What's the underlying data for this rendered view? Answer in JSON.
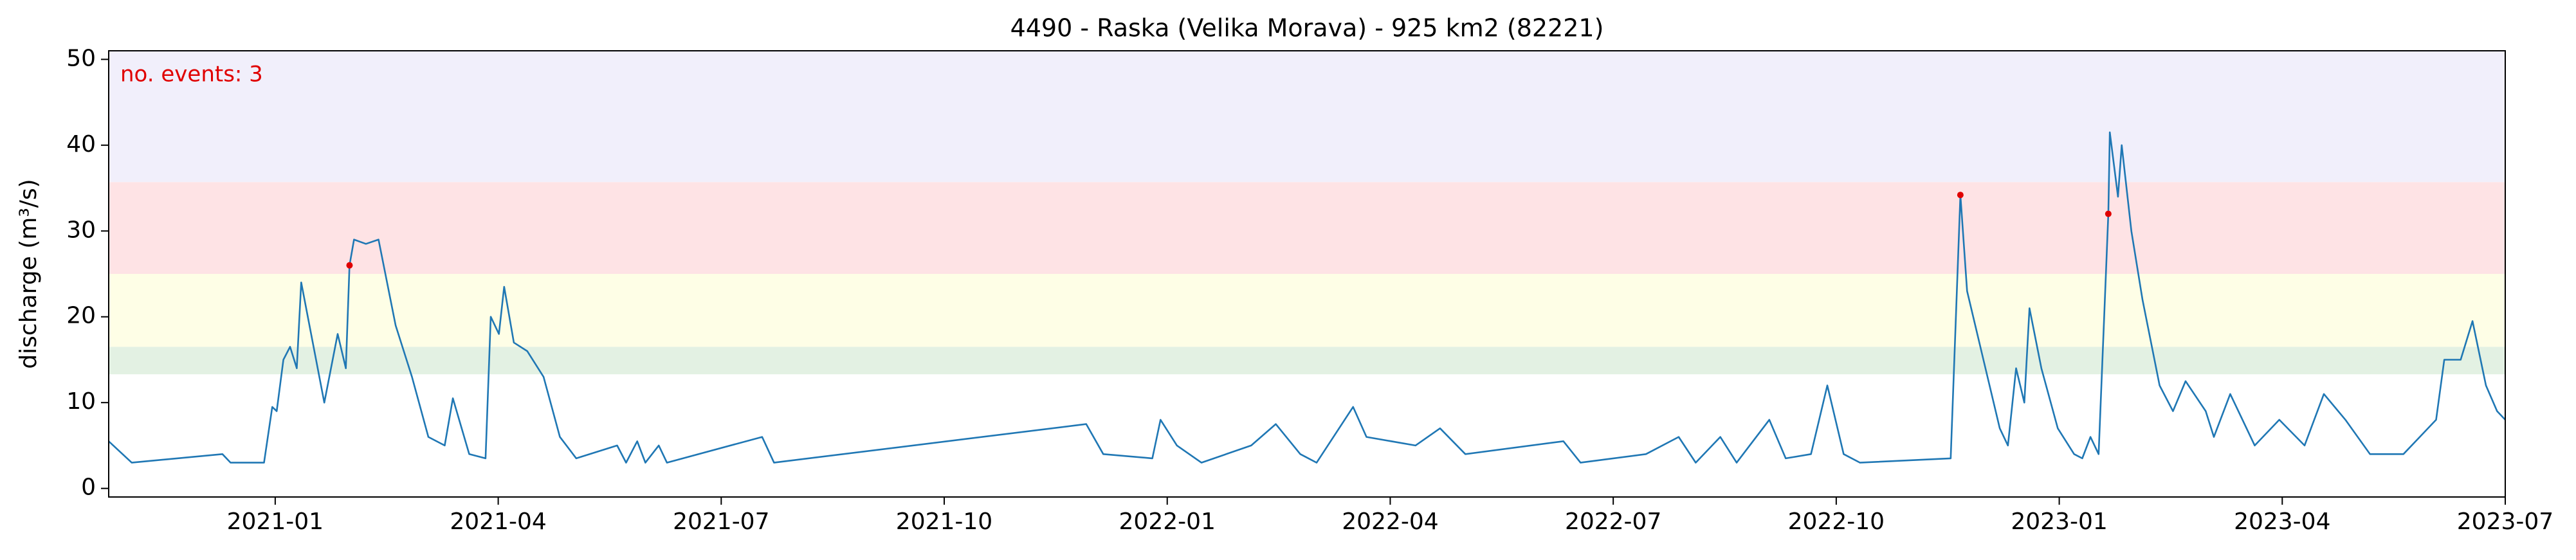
{
  "chart_data": {
    "type": "line",
    "title": "4490 - Raska (Velika Morava) - 925 km2 (82221)",
    "ylabel": "discharge (m³/s)",
    "annotation": "no. events: 3",
    "annotation_color": "#e00000",
    "color": "#1f77b4",
    "xlim": [
      -2.24,
      30
    ],
    "ylim": [
      -1,
      51
    ],
    "yticks": [
      0,
      10,
      20,
      30,
      40,
      50
    ],
    "xticks": [
      {
        "value": 0,
        "label": "2021-01"
      },
      {
        "value": 3,
        "label": "2021-04"
      },
      {
        "value": 6,
        "label": "2021-07"
      },
      {
        "value": 9,
        "label": "2021-10"
      },
      {
        "value": 12,
        "label": "2022-01"
      },
      {
        "value": 15,
        "label": "2022-04"
      },
      {
        "value": 18,
        "label": "2022-07"
      },
      {
        "value": 21,
        "label": "2022-10"
      },
      {
        "value": 24,
        "label": "2023-01"
      },
      {
        "value": 27,
        "label": "2023-04"
      },
      {
        "value": 30,
        "label": "2023-07"
      }
    ],
    "bands": [
      {
        "from": 13.3,
        "to": 16.5,
        "color": "#e3f1e3"
      },
      {
        "from": 16.5,
        "to": 25,
        "color": "#fefee6"
      },
      {
        "from": 25,
        "to": 35.7,
        "color": "#fee3e5"
      },
      {
        "from": 35.7,
        "to": 51,
        "color": "#f1effb"
      }
    ],
    "x": [
      -2.24,
      -1.93,
      -0.71,
      -0.6,
      -0.15,
      -0.04,
      0.02,
      0.11,
      0.2,
      0.29,
      0.35,
      0.66,
      0.84,
      0.95,
      1.0,
      1.06,
      1.22,
      1.39,
      1.62,
      1.84,
      2.06,
      2.28,
      2.39,
      2.61,
      2.83,
      2.9,
      3.01,
      3.08,
      3.21,
      3.39,
      3.61,
      3.83,
      4.05,
      4.6,
      4.72,
      4.87,
      4.98,
      5.16,
      5.27,
      6.55,
      6.71,
      10.91,
      11.14,
      11.8,
      11.91,
      12.13,
      12.46,
      13.13,
      13.46,
      13.79,
      14.01,
      14.5,
      14.68,
      15.34,
      15.67,
      16.01,
      17.33,
      17.56,
      18.44,
      18.88,
      19.11,
      19.44,
      19.66,
      20.1,
      20.32,
      20.66,
      20.88,
      21.1,
      21.32,
      22.54,
      22.67,
      22.76,
      22.98,
      23.2,
      23.31,
      23.42,
      23.53,
      23.6,
      23.76,
      23.98,
      24.2,
      24.31,
      24.42,
      24.53,
      24.66,
      24.68,
      24.79,
      24.84,
      24.97,
      25.12,
      25.35,
      25.53,
      25.7,
      25.97,
      26.08,
      26.3,
      26.63,
      26.96,
      27.3,
      27.56,
      27.85,
      28.18,
      28.63,
      28.85,
      29.07,
      29.18,
      29.4,
      29.56,
      29.74,
      29.89,
      30.0
    ],
    "values": [
      5.5,
      3,
      4,
      3,
      3,
      9.5,
      9,
      15,
      16.5,
      14,
      24,
      10,
      18,
      14,
      26,
      29,
      28.5,
      29,
      19,
      13,
      6,
      5,
      10.5,
      4,
      3.5,
      20,
      18,
      23.5,
      17,
      16,
      13,
      6,
      3.5,
      5,
      3,
      5.5,
      3,
      5,
      3,
      6,
      3,
      7.5,
      4,
      3.5,
      8,
      5,
      3,
      5,
      7.5,
      4,
      3,
      9.5,
      6,
      5,
      7,
      4,
      5.5,
      3,
      4,
      6,
      3,
      6,
      3,
      8,
      3.5,
      4,
      12,
      4,
      3,
      3.5,
      34.2,
      23,
      15,
      7,
      5,
      14,
      10,
      21,
      14,
      7,
      4,
      3.5,
      6,
      4,
      32,
      41.5,
      34,
      40,
      30,
      22,
      12,
      9,
      12.5,
      9,
      6,
      11,
      5,
      8,
      5,
      11,
      8,
      4,
      4,
      6,
      8,
      15,
      15,
      19.5,
      12,
      9,
      8
    ],
    "events": {
      "x": [
        1.0,
        22.67,
        24.66
      ],
      "values": [
        26,
        34.2,
        32
      ],
      "color": "#e00000"
    }
  }
}
